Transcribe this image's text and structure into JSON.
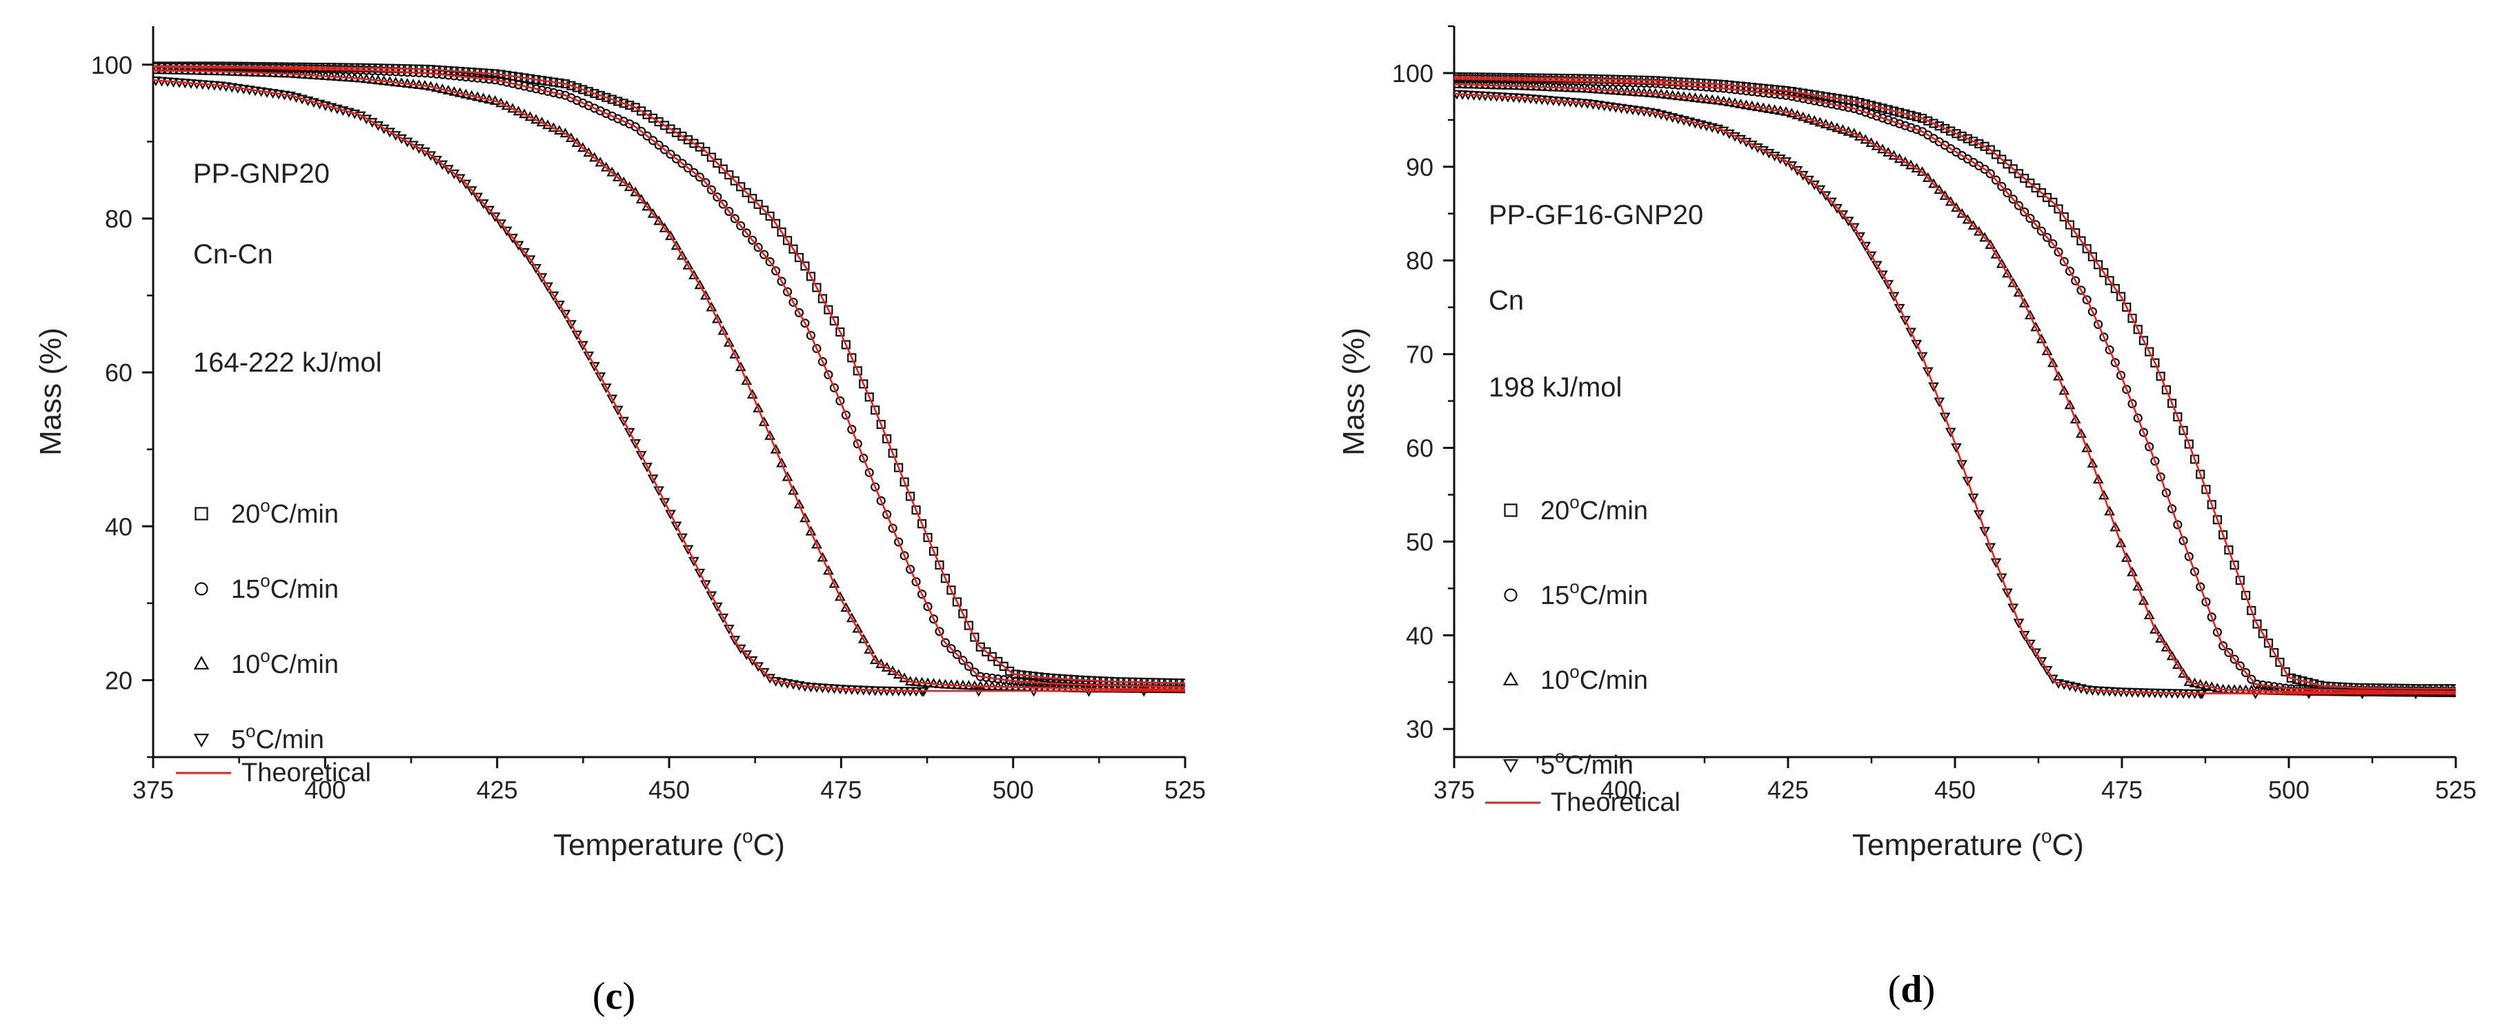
{
  "chart_data": [
    {
      "type": "scatter",
      "panel_label": {
        "open": "(",
        "letter": "c",
        "close": ")"
      },
      "xlabel": "Temperature (",
      "xlabel_sup": "o",
      "xlabel_suffix": "C)",
      "ylabel": "Mass (%)",
      "xlim": [
        375,
        525
      ],
      "ylim": [
        10,
        105
      ],
      "xticks": [
        375,
        400,
        425,
        450,
        475,
        500,
        525
      ],
      "yticks": [
        20,
        40,
        60,
        80,
        100
      ],
      "annotations": [
        "PP-GNP20",
        "Cn-Cn",
        "164-222 kJ/mol"
      ],
      "legend": [
        {
          "marker": "square",
          "pre": "20",
          "sup": "o",
          "post": "C/min"
        },
        {
          "marker": "circle",
          "pre": "15",
          "sup": "o",
          "post": "C/min"
        },
        {
          "marker": "triangle-up",
          "pre": "10",
          "sup": "o",
          "post": "C/min"
        },
        {
          "marker": "triangle-down",
          "pre": "5",
          "sup": "o",
          "post": "C/min"
        },
        {
          "marker": "line",
          "pre": "Theoretical",
          "sup": "",
          "post": ""
        }
      ],
      "series": [
        {
          "name": "20°C/min",
          "marker": "square",
          "x": [
            375,
            385,
            395,
            405,
            415,
            425,
            435,
            445,
            455,
            465,
            470,
            475,
            480,
            485,
            490,
            495,
            500,
            505,
            510,
            515,
            520,
            525
          ],
          "y": [
            99.8,
            99.8,
            99.7,
            99.6,
            99.4,
            98.8,
            97.5,
            94.5,
            89.0,
            80.0,
            73.5,
            65.0,
            55.0,
            44.0,
            33.5,
            24.5,
            20.8,
            20.3,
            20.0,
            19.8,
            19.7,
            19.6
          ]
        },
        {
          "name": "15°C/min",
          "marker": "circle",
          "x": [
            375,
            385,
            395,
            405,
            415,
            425,
            435,
            445,
            455,
            465,
            470,
            475,
            480,
            485,
            490,
            495,
            500,
            505,
            510,
            520,
            525
          ],
          "y": [
            99.7,
            99.6,
            99.5,
            99.3,
            98.9,
            98.0,
            96.0,
            92.0,
            85.0,
            74.0,
            66.0,
            56.0,
            45.0,
            34.5,
            25.0,
            20.5,
            19.9,
            19.6,
            19.4,
            19.2,
            19.1
          ]
        },
        {
          "name": "10°C/min",
          "marker": "triangle-up",
          "x": [
            375,
            385,
            395,
            405,
            415,
            425,
            435,
            445,
            450,
            455,
            460,
            465,
            470,
            475,
            480,
            485,
            490,
            495,
            500,
            510,
            525
          ],
          "y": [
            99.3,
            99.1,
            98.8,
            98.2,
            97.2,
            95.2,
            91.0,
            83.5,
            78.0,
            70.5,
            61.5,
            51.0,
            40.5,
            30.5,
            22.5,
            19.8,
            19.4,
            19.2,
            19.1,
            18.9,
            18.8
          ]
        },
        {
          "name": "5°C/min",
          "marker": "triangle-down",
          "x": [
            375,
            385,
            395,
            405,
            415,
            420,
            425,
            430,
            435,
            440,
            445,
            450,
            455,
            460,
            465,
            470,
            475,
            480,
            487
          ],
          "y": [
            98.0,
            97.3,
            96.0,
            93.5,
            88.5,
            85.0,
            80.0,
            74.5,
            67.5,
            59.5,
            51.0,
            42.0,
            33.0,
            24.5,
            20.0,
            19.2,
            18.9,
            18.7,
            18.6
          ]
        }
      ]
    },
    {
      "type": "scatter",
      "panel_label": {
        "open": "(",
        "letter": "d",
        "close": ")"
      },
      "xlabel": "Temperature (",
      "xlabel_sup": "o",
      "xlabel_suffix": "C)",
      "ylabel": "Mass (%)",
      "xlim": [
        375,
        525
      ],
      "ylim": [
        27,
        105
      ],
      "xticks": [
        375,
        400,
        425,
        450,
        475,
        500,
        525
      ],
      "yticks": [
        30,
        40,
        50,
        60,
        70,
        80,
        90,
        100
      ],
      "annotations": [
        "PP-GF16-GNP20",
        "Cn",
        "198 kJ/mol"
      ],
      "legend": [
        {
          "marker": "square",
          "pre": "20",
          "sup": "o",
          "post": "C/min"
        },
        {
          "marker": "circle",
          "pre": "15",
          "sup": "o",
          "post": "C/min"
        },
        {
          "marker": "triangle-up",
          "pre": "10",
          "sup": "o",
          "post": "C/min"
        },
        {
          "marker": "triangle-down",
          "pre": "5",
          "sup": "o",
          "post": "C/min"
        },
        {
          "marker": "line",
          "pre": "Theoretical",
          "sup": "",
          "post": ""
        }
      ],
      "series": [
        {
          "name": "20°C/min",
          "marker": "square",
          "x": [
            375,
            385,
            395,
            405,
            415,
            425,
            435,
            445,
            455,
            465,
            475,
            480,
            485,
            490,
            495,
            500,
            505,
            510,
            520,
            525
          ],
          "y": [
            99.6,
            99.5,
            99.4,
            99.2,
            98.8,
            98.1,
            97.0,
            95.2,
            92.0,
            86.0,
            76.0,
            69.0,
            60.5,
            51.0,
            41.5,
            35.5,
            34.6,
            34.4,
            34.3,
            34.3
          ]
        },
        {
          "name": "15°C/min",
          "marker": "circle",
          "x": [
            375,
            385,
            395,
            405,
            415,
            425,
            435,
            445,
            455,
            465,
            470,
            475,
            480,
            485,
            490,
            495,
            500,
            510,
            525
          ],
          "y": [
            99.4,
            99.3,
            99.1,
            98.9,
            98.4,
            97.6,
            96.2,
            93.8,
            89.5,
            81.5,
            75.5,
            67.5,
            58.5,
            48.5,
            39.0,
            34.8,
            34.3,
            34.1,
            34.0
          ]
        },
        {
          "name": "10°C/min",
          "marker": "triangle-up",
          "x": [
            375,
            385,
            395,
            405,
            415,
            425,
            435,
            445,
            455,
            460,
            465,
            470,
            475,
            480,
            485,
            490,
            500,
            510,
            525
          ],
          "y": [
            98.8,
            98.6,
            98.3,
            97.8,
            97.0,
            95.8,
            93.5,
            89.5,
            82.0,
            76.0,
            68.5,
            59.5,
            49.5,
            40.5,
            35.0,
            34.2,
            34.0,
            33.9,
            33.8
          ]
        },
        {
          "name": "5°C/min",
          "marker": "triangle-down",
          "x": [
            375,
            385,
            395,
            405,
            415,
            425,
            430,
            435,
            440,
            445,
            450,
            455,
            460,
            465,
            470,
            475,
            480,
            487
          ],
          "y": [
            97.8,
            97.4,
            96.8,
            95.8,
            94.0,
            90.5,
            87.5,
            83.5,
            77.5,
            70.0,
            60.5,
            50.0,
            40.5,
            35.0,
            34.2,
            34.0,
            33.9,
            33.8
          ]
        }
      ]
    }
  ]
}
